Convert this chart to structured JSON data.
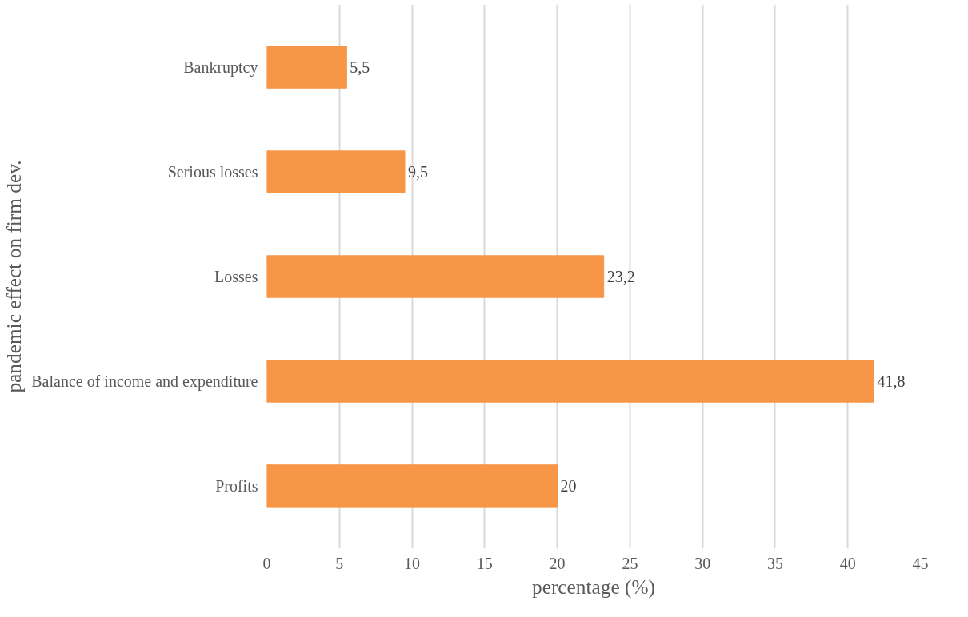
{
  "chart_data": {
    "type": "bar",
    "orientation": "horizontal",
    "xlabel": "percentage (%)",
    "ylabel": "pandemic effect on firm dev.",
    "categories": [
      "Bankruptcy",
      "Serious losses",
      "Losses",
      "Balance of income and expenditure",
      "Profits"
    ],
    "values": [
      5.5,
      9.5,
      23.2,
      41.8,
      20
    ],
    "value_labels": [
      "5,5",
      "9,5",
      "23,2",
      "41,8",
      "20"
    ],
    "color": "#f79646",
    "xlim": [
      0,
      45
    ],
    "xticks": [
      0,
      5,
      10,
      15,
      20,
      25,
      30,
      35,
      40,
      45
    ],
    "grid": "x"
  }
}
